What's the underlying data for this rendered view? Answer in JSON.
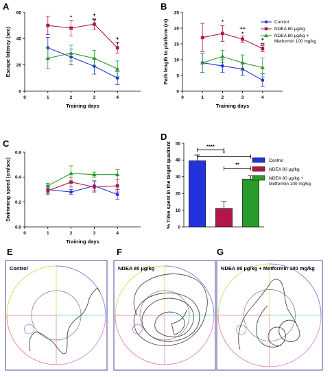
{
  "colors": {
    "control": "#2233dd",
    "ndea": "#b0184a",
    "metformin": "#2a9a2a",
    "track": "#444444",
    "box": "#4b4a9a"
  },
  "charts": [
    {
      "id": "A",
      "panel_label": "A",
      "type": "line",
      "ylabel": "Escape latency (sec)",
      "xlabel": "Training days",
      "xlim": [
        0,
        5
      ],
      "ylim": [
        0,
        60
      ],
      "xticks": [
        "0",
        "1",
        "2",
        "3",
        "4"
      ],
      "yticks": [
        "0",
        "20",
        "40",
        "60"
      ],
      "x": [
        1,
        2,
        3,
        4
      ],
      "series": [
        {
          "key": "control",
          "values": [
            33,
            26,
            19,
            10
          ],
          "err": [
            8,
            6,
            6,
            5
          ]
        },
        {
          "key": "ndea",
          "values": [
            50,
            48,
            51,
            33
          ],
          "err": [
            7,
            6,
            4,
            4
          ]
        },
        {
          "key": "metformin",
          "values": [
            25,
            29,
            25,
            17
          ],
          "err": [
            8,
            6,
            6,
            6
          ]
        }
      ],
      "annotations": [
        {
          "x": 2,
          "y": 55,
          "lines": [
            "*"
          ]
        },
        {
          "x": 3,
          "y": 57,
          "lines": [
            "+",
            "**"
          ]
        },
        {
          "x": 4,
          "y": 39,
          "lines": [
            "+",
            "*"
          ]
        }
      ]
    },
    {
      "id": "B",
      "panel_label": "B",
      "type": "line",
      "ylabel": "Path length to platform (m)",
      "xlabel": "Training days",
      "xlim": [
        0,
        5
      ],
      "ylim": [
        0,
        25
      ],
      "xticks": [
        "0",
        "1",
        "2",
        "3",
        "4"
      ],
      "yticks": [
        "0",
        "5",
        "10",
        "15",
        "20",
        "25"
      ],
      "x": [
        1,
        2,
        3,
        4
      ],
      "series": [
        {
          "key": "control",
          "values": [
            9,
            8,
            7,
            3.5
          ],
          "err": [
            3,
            2,
            2,
            2
          ]
        },
        {
          "key": "ndea",
          "values": [
            17,
            18.3,
            16.5,
            13.5
          ],
          "err": [
            4.5,
            2.5,
            1,
            1
          ]
        },
        {
          "key": "metformin",
          "values": [
            9,
            11,
            9,
            7.5
          ],
          "err": [
            3,
            2,
            2.5,
            3
          ]
        }
      ],
      "annotations": [
        {
          "x": 2,
          "y": 21.5,
          "lines": [
            "*"
          ]
        },
        {
          "x": 3,
          "y": 19.5,
          "lines": [
            "++",
            "*"
          ]
        },
        {
          "x": 4,
          "y": 16,
          "lines": [
            "+",
            "**"
          ]
        }
      ]
    },
    {
      "id": "C",
      "panel_label": "C",
      "type": "line",
      "ylabel": "Swimming speed (cm/sec)",
      "xlabel": "Training days",
      "xlim": [
        0,
        5
      ],
      "ylim": [
        0,
        0.6
      ],
      "xticks": [
        "0",
        "1",
        "2",
        "3",
        "4"
      ],
      "yticks": [
        "0.0",
        "0.2",
        "0.4",
        "0.6"
      ],
      "x": [
        1,
        2,
        3,
        4
      ],
      "series": [
        {
          "key": "control",
          "values": [
            0.3,
            0.28,
            0.33,
            0.26
          ],
          "err": [
            0.03,
            0.02,
            0.04,
            0.04
          ]
        },
        {
          "key": "ndea",
          "values": [
            0.29,
            0.36,
            0.32,
            0.33
          ],
          "err": [
            0.03,
            0.04,
            0.04,
            0.05
          ]
        },
        {
          "key": "metformin",
          "values": [
            0.33,
            0.43,
            0.42,
            0.42
          ],
          "err": [
            0.02,
            0.06,
            0.02,
            0.04
          ]
        }
      ],
      "annotations": []
    },
    {
      "id": "D",
      "panel_label": "D",
      "type": "bar",
      "ylabel": "% Time spent in the target quadrant",
      "ylim": [
        0,
        50
      ],
      "yticks": [
        "0",
        "10",
        "20",
        "30",
        "40",
        "50"
      ],
      "series": [
        {
          "key": "control",
          "value": 39.5,
          "err": 3.5
        },
        {
          "key": "ndea",
          "value": 11,
          "err": 4
        },
        {
          "key": "metformin",
          "value": 28.5,
          "err": 2
        }
      ],
      "comparisons": [
        {
          "from": 0,
          "to": 1,
          "y": 46,
          "label": "****"
        },
        {
          "from": 0,
          "to": 2,
          "y": 42,
          "label": "*"
        },
        {
          "from": 1,
          "to": 2,
          "y": 35,
          "label": "**"
        }
      ]
    }
  ],
  "legend_top": [
    {
      "key": "control",
      "lines": [
        "Control"
      ]
    },
    {
      "key": "ndea",
      "lines": [
        "NDEA 80 µg/kg"
      ]
    },
    {
      "key": "metformin",
      "lines": [
        "NDEA 80 µg/kg +",
        "Metformin 100 mg/kg"
      ]
    }
  ],
  "legend_bar": [
    {
      "key": "control",
      "lines": [
        "Control"
      ]
    },
    {
      "key": "ndea",
      "lines": [
        "NDEA 80 µg/kg"
      ]
    },
    {
      "key": "metformin",
      "lines": [
        "NDEA 80 µg/kg +",
        "Metformin 100 mg/kg"
      ]
    }
  ],
  "tracks": [
    {
      "id": "E",
      "panel_label": "E",
      "title": "Control"
    },
    {
      "id": "F",
      "panel_label": "F",
      "title": "NDEA 80 µg/kg"
    },
    {
      "id": "G",
      "panel_label": "G",
      "title": "NDEA 80 µg/kg + Metformin 100 mg/kg"
    }
  ]
}
